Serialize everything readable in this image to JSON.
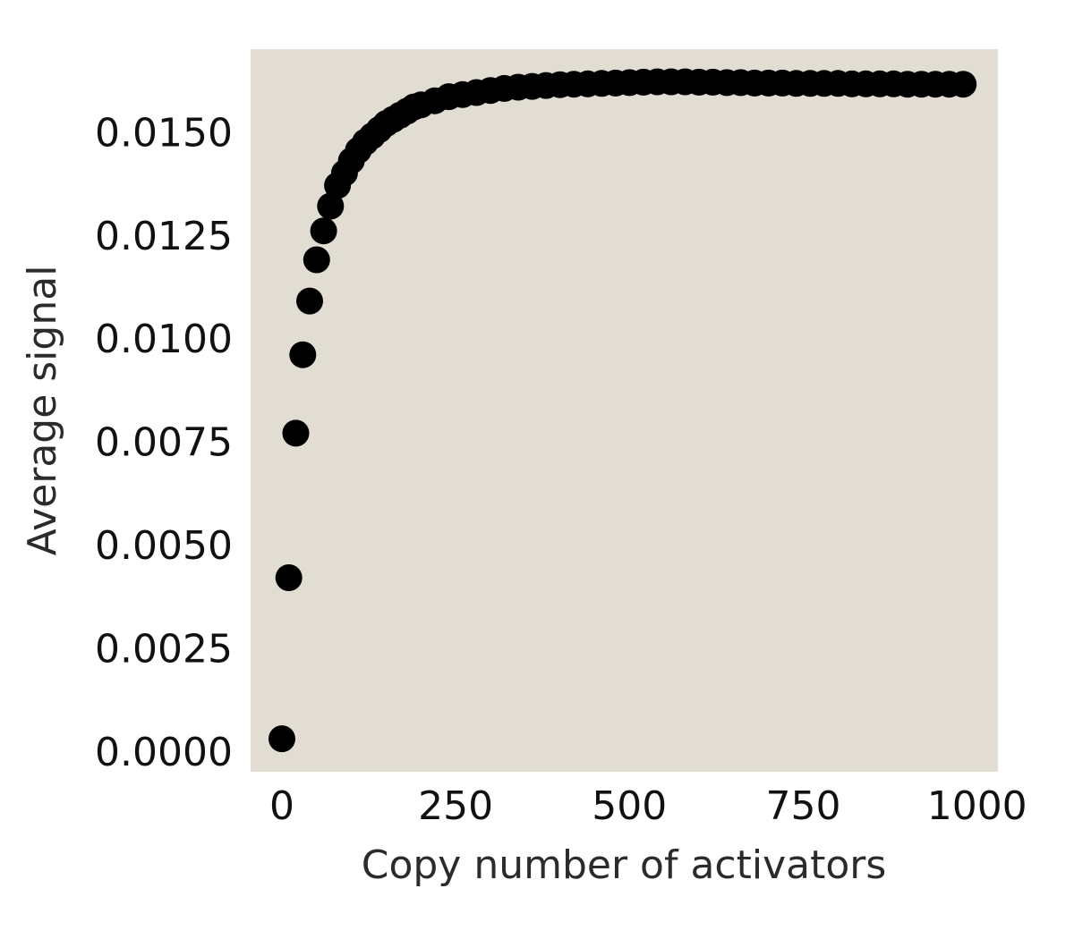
{
  "chart_data": {
    "type": "scatter",
    "title": "",
    "xlabel": "Copy number of activators",
    "ylabel": "Average signal",
    "xlim": [
      -45,
      1030
    ],
    "ylim": [
      -0.0005,
      0.017
    ],
    "xticks": [
      0,
      250,
      500,
      750,
      1000
    ],
    "xtick_labels": [
      "0",
      "250",
      "500",
      "750",
      "1000"
    ],
    "yticks": [
      0.0,
      0.0025,
      0.005,
      0.0075,
      0.01,
      0.0125,
      0.015
    ],
    "ytick_labels": [
      "0.0000",
      "0.0025",
      "0.0050",
      "0.0075",
      "0.0100",
      "0.0125",
      "0.0150"
    ],
    "grid": false,
    "plot_background": "#e2ddd2",
    "marker_color": "#000000",
    "series": [
      {
        "x": [
          0,
          10,
          20,
          30,
          40,
          50,
          60,
          70,
          80,
          90,
          100,
          110,
          120,
          130,
          140,
          150,
          160,
          170,
          180,
          190,
          200,
          220,
          240,
          260,
          280,
          300,
          320,
          340,
          360,
          380,
          400,
          420,
          440,
          460,
          480,
          500,
          520,
          540,
          560,
          580,
          600,
          620,
          640,
          660,
          680,
          700,
          720,
          740,
          760,
          780,
          800,
          820,
          840,
          860,
          880,
          900,
          920,
          940,
          960,
          980
        ],
        "y": [
          0.0003,
          0.0042,
          0.0077,
          0.0096,
          0.0109,
          0.0119,
          0.0126,
          0.0132,
          0.0137,
          0.014,
          0.0143,
          0.01455,
          0.01475,
          0.0149,
          0.01505,
          0.0152,
          0.0153,
          0.0154,
          0.0155,
          0.0156,
          0.01565,
          0.01575,
          0.01585,
          0.0159,
          0.01595,
          0.016,
          0.01605,
          0.01608,
          0.0161,
          0.01612,
          0.01614,
          0.01615,
          0.01616,
          0.01617,
          0.01618,
          0.01619,
          0.0162,
          0.01621,
          0.01621,
          0.01621,
          0.0162,
          0.0162,
          0.01619,
          0.01619,
          0.01618,
          0.01618,
          0.01618,
          0.01617,
          0.01617,
          0.01617,
          0.01617,
          0.01616,
          0.01616,
          0.01616,
          0.01616,
          0.01615,
          0.01615,
          0.01615,
          0.01615,
          0.01615
        ]
      }
    ]
  }
}
